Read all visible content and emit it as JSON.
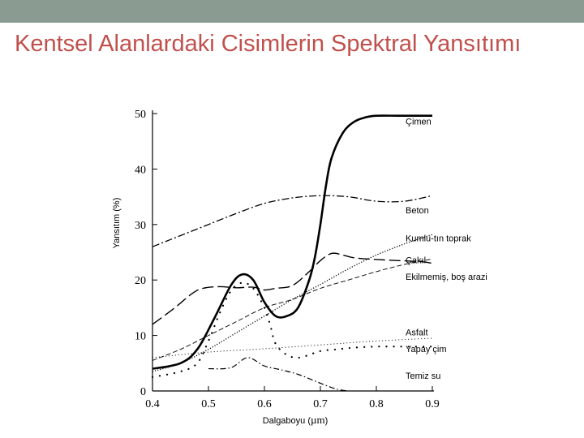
{
  "slide": {
    "title": "Kentsel Alanlardaki Cisimlerin Spektral Yansıtımı"
  },
  "colors": {
    "top_bar": "#8a9c91",
    "title": "#c0504d",
    "lines": "#000000"
  },
  "chart_data": {
    "type": "line",
    "title": "",
    "xlabel_prefix": "Dalgaboyu (",
    "xlabel_unit": "µm",
    "xlabel_suffix": ")",
    "ylabel": "Yansıtım (%)",
    "xlim": [
      0.4,
      0.9
    ],
    "ylim": [
      0,
      50
    ],
    "xticks": [
      "0.4",
      "0.5",
      "0.6",
      "0.7",
      "0.8",
      "0.9"
    ],
    "yticks": [
      "0",
      "10",
      "20",
      "30",
      "40",
      "50"
    ],
    "grid": false,
    "legend": "inline-labels-right",
    "series": [
      {
        "name": "Çimen",
        "style": "solid-thick",
        "x": [
          0.4,
          0.45,
          0.48,
          0.51,
          0.54,
          0.56,
          0.58,
          0.6,
          0.62,
          0.64,
          0.66,
          0.68,
          0.69,
          0.7,
          0.71,
          0.72,
          0.74,
          0.76,
          0.78,
          0.8,
          0.84,
          0.88,
          0.9
        ],
        "y": [
          4.0,
          5.0,
          7.5,
          13.0,
          19.0,
          21.0,
          20.0,
          16.0,
          13.5,
          13.5,
          15.0,
          20.0,
          24.0,
          30.0,
          37.0,
          42.0,
          46.5,
          48.5,
          49.3,
          49.6,
          49.6,
          49.6,
          49.6
        ]
      },
      {
        "name": "Beton",
        "style": "dashdot",
        "x": [
          0.4,
          0.45,
          0.5,
          0.55,
          0.6,
          0.65,
          0.7,
          0.75,
          0.8,
          0.85,
          0.9
        ],
        "y": [
          26.0,
          28.0,
          30.0,
          32.0,
          33.8,
          34.8,
          35.2,
          35.0,
          34.2,
          34.2,
          35.2
        ]
      },
      {
        "name": "Kumlu-tın toprak",
        "style": "dotted",
        "x": [
          0.4,
          0.45,
          0.5,
          0.55,
          0.6,
          0.65,
          0.7,
          0.75,
          0.8,
          0.85,
          0.9
        ],
        "y": [
          3.5,
          5.0,
          7.5,
          10.5,
          13.5,
          16.5,
          19.2,
          22.0,
          24.5,
          26.5,
          28.2
        ]
      },
      {
        "name": "Çakıl",
        "style": "longdash",
        "x": [
          0.4,
          0.44,
          0.47,
          0.49,
          0.52,
          0.55,
          0.58,
          0.6,
          0.62,
          0.65,
          0.68,
          0.7,
          0.72,
          0.74,
          0.76,
          0.8,
          0.84,
          0.88,
          0.9
        ],
        "y": [
          12.0,
          15.0,
          17.5,
          18.5,
          18.8,
          18.6,
          18.7,
          18.2,
          18.5,
          19.0,
          21.5,
          23.5,
          24.8,
          24.5,
          24.0,
          23.7,
          23.5,
          23.3,
          23.0
        ]
      },
      {
        "name": "Ekilmemiş, boş arazi",
        "style": "thindash",
        "x": [
          0.4,
          0.45,
          0.5,
          0.55,
          0.6,
          0.65,
          0.7,
          0.75,
          0.8,
          0.85,
          0.9
        ],
        "y": [
          5.5,
          7.5,
          10.0,
          12.5,
          15.0,
          16.5,
          18.5,
          20.0,
          21.5,
          22.8,
          23.8
        ]
      },
      {
        "name": "Asfalt",
        "style": "finedot",
        "x": [
          0.4,
          0.5,
          0.6,
          0.7,
          0.8,
          0.9
        ],
        "y": [
          6.0,
          7.0,
          7.6,
          8.3,
          9.0,
          9.5
        ]
      },
      {
        "name": "Yapay çim",
        "style": "sparsedot",
        "x": [
          0.4,
          0.45,
          0.48,
          0.5,
          0.52,
          0.54,
          0.56,
          0.58,
          0.6,
          0.61,
          0.62,
          0.64,
          0.66,
          0.68,
          0.7,
          0.73,
          0.76,
          0.8,
          0.84,
          0.88,
          0.9
        ],
        "y": [
          2.5,
          3.5,
          5.0,
          9.0,
          14.0,
          18.0,
          19.5,
          18.5,
          15.0,
          12.0,
          8.5,
          6.5,
          6.0,
          6.5,
          7.2,
          7.5,
          7.8,
          8.0,
          8.0,
          8.0,
          8.0
        ]
      },
      {
        "name": "Temiz su",
        "style": "dashdot-fine",
        "x": [
          0.5,
          0.54,
          0.57,
          0.6,
          0.63,
          0.66,
          0.69,
          0.71,
          0.73,
          0.75
        ],
        "y": [
          4.0,
          4.2,
          6.0,
          4.5,
          3.8,
          3.0,
          1.8,
          1.0,
          0.3,
          0.0
        ]
      }
    ],
    "label_anchor_y": [
      48,
      32,
      27,
      23,
      20,
      10,
      7,
      2.2
    ]
  }
}
